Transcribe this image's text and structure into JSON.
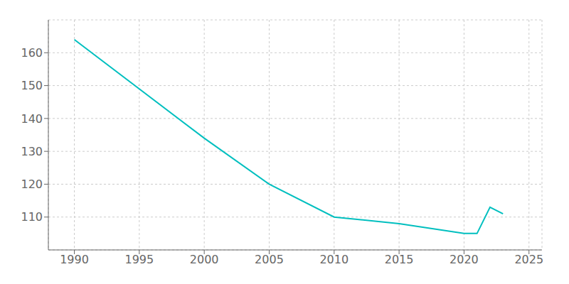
{
  "chart_data": {
    "type": "line",
    "x": [
      1990,
      2000,
      2005,
      2010,
      2015,
      2020,
      2021,
      2022,
      2023
    ],
    "values": [
      164,
      134,
      120,
      110,
      108,
      105,
      105,
      113,
      111
    ],
    "color": "#00BFBF",
    "xlim": [
      1988,
      2026
    ],
    "ylim": [
      100,
      170
    ],
    "xticks": [
      1990,
      1995,
      2000,
      2005,
      2010,
      2015,
      2020,
      2025
    ],
    "yticks": [
      110,
      120,
      130,
      140,
      150,
      160
    ],
    "grid": true
  }
}
